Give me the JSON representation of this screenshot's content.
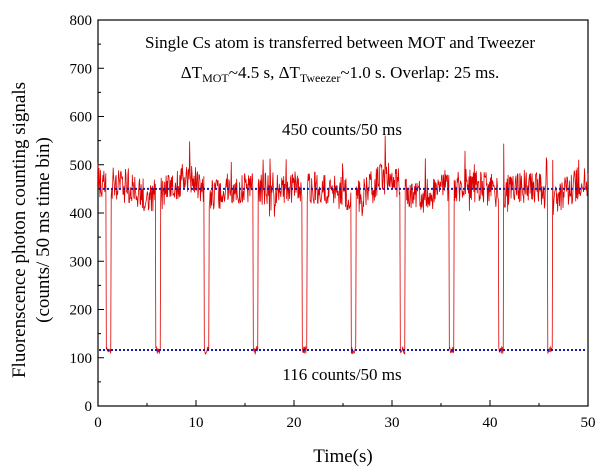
{
  "chart_data": {
    "type": "line",
    "xlabel": "Time(s)",
    "ylabel_line1": "Fluorenscence photon counting signals",
    "ylabel_line2": "(counts/ 50 ms time bin)",
    "xlim": [
      0,
      50
    ],
    "ylim": [
      0,
      800
    ],
    "x_ticks": [
      "0",
      "10",
      "20",
      "30",
      "40",
      "50"
    ],
    "y_ticks": [
      "0",
      "100",
      "200",
      "300",
      "400",
      "500",
      "600",
      "700",
      "800"
    ],
    "grid": false,
    "line_color": "#dd0000",
    "reference_color": "#1a1aa6",
    "annotations": {
      "title_line1": "Single Cs atom is transferred between MOT and Tweezer",
      "t2_prefix": "ΔT",
      "t2_sub1": "MOT",
      "t2_mid": "~4.5 s, ΔT",
      "t2_sub2": "Tweezer",
      "t2_suffix": "~1.0 s. Overlap: 25 ms.",
      "upper_label": "450 counts/50 ms",
      "lower_label": "116 counts/50 ms"
    },
    "reference_lines": [
      {
        "value": 450
      },
      {
        "value": 116
      }
    ],
    "series": [
      {
        "mean_high": 450,
        "mean_low": 116,
        "dip_times": [
          1,
          6,
          11,
          16,
          21,
          26,
          31,
          36,
          41,
          46
        ],
        "dip_duration": 0.5,
        "points": [
          [
            0,
            420
          ],
          [
            0.3,
            480
          ],
          [
            0.6,
            440
          ],
          [
            0.9,
            110
          ],
          [
            1.2,
            105
          ],
          [
            1.5,
            400
          ],
          [
            2,
            470
          ],
          [
            2.5,
            430
          ],
          [
            3,
            490
          ],
          [
            3.5,
            440
          ],
          [
            4,
            460
          ],
          [
            4.5,
            420
          ],
          [
            5,
            480
          ],
          [
            5.5,
            450
          ],
          [
            5.9,
            108
          ],
          [
            6.3,
            112
          ],
          [
            6.6,
            420
          ],
          [
            7,
            470
          ],
          [
            7.5,
            500
          ],
          [
            8,
            440
          ],
          [
            8.5,
            470
          ],
          [
            9,
            430
          ],
          [
            9.5,
            480
          ],
          [
            10,
            450
          ],
          [
            10.9,
            106
          ],
          [
            11.3,
            110
          ],
          [
            11.6,
            410
          ],
          [
            12,
            460
          ],
          [
            12.5,
            430
          ],
          [
            13,
            480
          ],
          [
            13.5,
            450
          ],
          [
            14,
            500
          ],
          [
            14.5,
            440
          ],
          [
            15,
            470
          ],
          [
            15.9,
            104
          ],
          [
            16.3,
            109
          ],
          [
            16.6,
            420
          ],
          [
            17,
            490
          ],
          [
            17.5,
            460
          ],
          [
            18,
            500
          ],
          [
            18.5,
            470
          ],
          [
            19,
            520
          ],
          [
            19.5,
            480
          ],
          [
            20,
            540
          ],
          [
            20.9,
            108
          ],
          [
            21.3,
            112
          ],
          [
            21.6,
            430
          ],
          [
            22,
            470
          ],
          [
            22.5,
            440
          ],
          [
            23,
            490
          ],
          [
            23.5,
            450
          ],
          [
            24,
            480
          ],
          [
            24.5,
            430
          ],
          [
            25,
            470
          ],
          [
            25.9,
            110
          ],
          [
            26.3,
            114
          ],
          [
            26.6,
            430
          ],
          [
            27,
            480
          ],
          [
            27.5,
            500
          ],
          [
            28,
            450
          ],
          [
            28.5,
            480
          ],
          [
            29,
            440
          ],
          [
            29.5,
            470
          ],
          [
            30,
            490
          ],
          [
            30.9,
            108
          ],
          [
            31.3,
            118
          ],
          [
            31.6,
            440
          ],
          [
            32,
            490
          ],
          [
            32.5,
            520
          ],
          [
            33,
            470
          ],
          [
            33.5,
            500
          ],
          [
            34,
            450
          ],
          [
            34.5,
            480
          ],
          [
            35,
            460
          ],
          [
            35.9,
            106
          ],
          [
            36.3,
            111
          ],
          [
            36.6,
            420
          ],
          [
            37,
            470
          ],
          [
            37.5,
            440
          ],
          [
            38,
            490
          ],
          [
            38.5,
            450
          ],
          [
            39,
            480
          ],
          [
            39.5,
            430
          ],
          [
            40,
            470
          ],
          [
            40.9,
            102
          ],
          [
            41.3,
            108
          ],
          [
            41.6,
            430
          ],
          [
            42,
            470
          ],
          [
            42.5,
            440
          ],
          [
            43,
            480
          ],
          [
            43.5,
            460
          ],
          [
            44,
            500
          ],
          [
            44.5,
            470
          ],
          [
            45,
            490
          ],
          [
            45.9,
            104
          ],
          [
            46.3,
            110
          ],
          [
            46.6,
            440
          ],
          [
            47,
            490
          ],
          [
            47.5,
            510
          ],
          [
            48,
            480
          ],
          [
            48.5,
            520
          ],
          [
            49,
            490
          ],
          [
            49.5,
            510
          ],
          [
            50,
            500
          ]
        ]
      }
    ]
  }
}
